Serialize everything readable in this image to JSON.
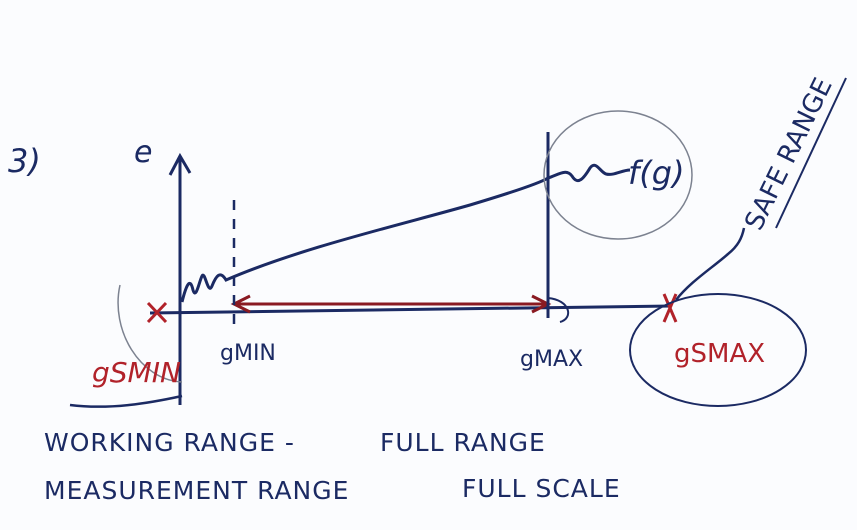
{
  "problem_number": "3)",
  "axis_label_y": "e",
  "curve_label": "f(g)",
  "safe_range_label": "SAFE RANGE",
  "points": {
    "g_smin": "gSMIN",
    "g_min": "gMIN",
    "g_max": "gMAX",
    "g_smax": "gSMAX"
  },
  "notes": {
    "working_range": "WORKING RANGE -",
    "full_range": "FULL RANGE",
    "measurement_range": "MEASUREMENT RANGE",
    "full_scale": "FULL SCALE"
  },
  "colors": {
    "ink": "#1b2a63",
    "red": "#b1222a",
    "paper": "#fbfcfe"
  }
}
